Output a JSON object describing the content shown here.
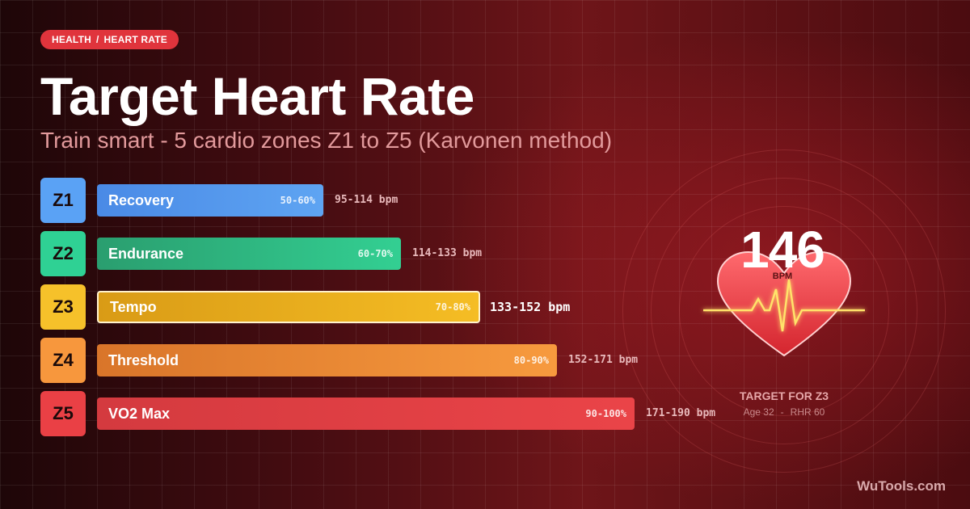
{
  "badge": {
    "section": "HEALTH",
    "separator": "/",
    "topic": "HEART RATE"
  },
  "title": "Target Heart Rate",
  "subtitle": "Train smart - 5 cardio zones Z1 to Z5 (Karvonen method)",
  "zones": [
    {
      "id": "Z1",
      "name": "Recovery",
      "pct": "50-60%",
      "bpm": "95-114 bpm",
      "color": "#4a8ae6",
      "color_end": "#5ea4f2",
      "chip": "#5aa2f5",
      "active": false
    },
    {
      "id": "Z2",
      "name": "Endurance",
      "pct": "60-70%",
      "bpm": "114-133 bpm",
      "color": "#2a9e6f",
      "color_end": "#33cf92",
      "chip": "#2fd194",
      "active": false
    },
    {
      "id": "Z3",
      "name": "Tempo",
      "pct": "70-80%",
      "bpm": "133-152 bpm",
      "color": "#d99b16",
      "color_end": "#f5bd24",
      "chip": "#f6c12a",
      "active": true
    },
    {
      "id": "Z4",
      "name": "Threshold",
      "pct": "80-90%",
      "bpm": "152-171 bpm",
      "color": "#d9752a",
      "color_end": "#f79a3e",
      "chip": "#f7973d",
      "active": false
    },
    {
      "id": "Z5",
      "name": "VO2 Max",
      "pct": "90-100%",
      "bpm": "171-190 bpm",
      "color": "#d43a3f",
      "color_end": "#ea4448",
      "chip": "#ea4045",
      "active": false
    }
  ],
  "target": {
    "value": "146",
    "unit": "BPM",
    "label": "TARGET FOR Z3",
    "age": "Age 32",
    "meta_sep": "-",
    "rhr": "RHR 60"
  },
  "brand": "WuTools.com",
  "colors": {
    "accent": "#e0343c",
    "heart": "#e23a42",
    "ecg": "#ffe36b"
  },
  "icons": {
    "heart": "heart-icon",
    "pulse": "ecg-line-icon"
  }
}
